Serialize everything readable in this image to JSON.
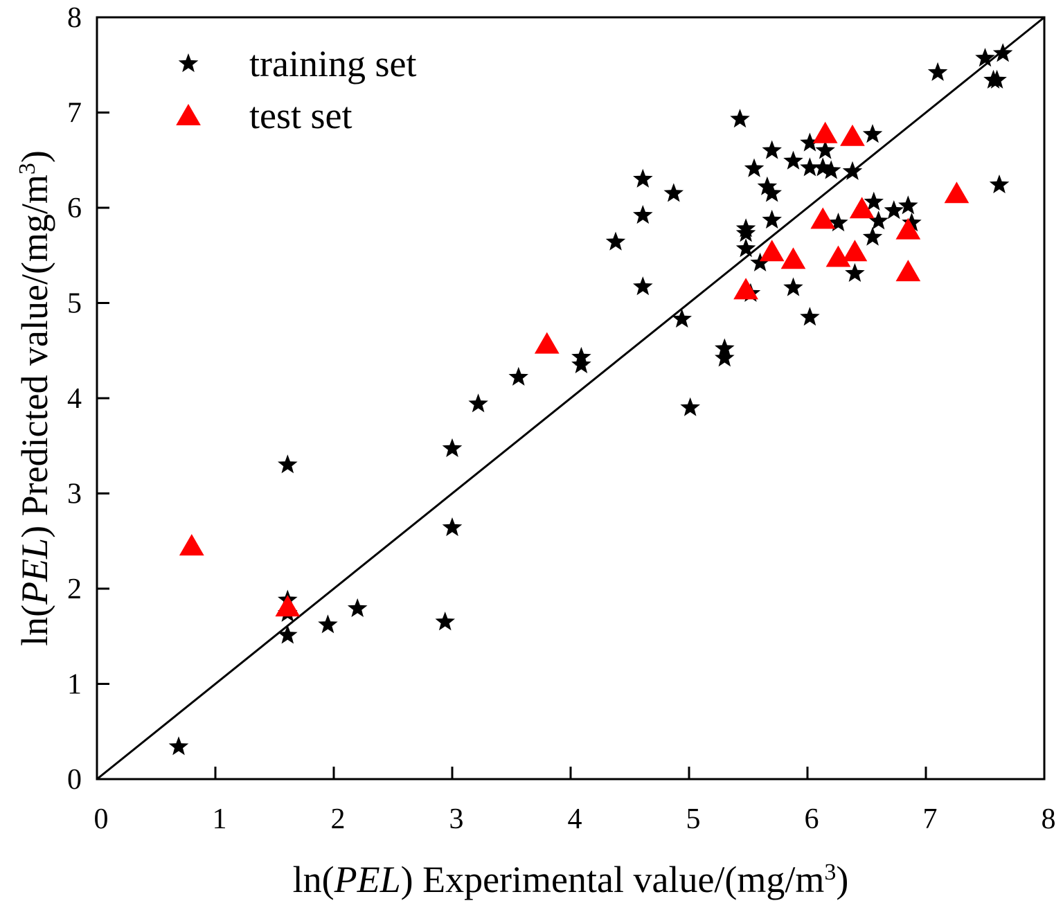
{
  "chart_data": {
    "type": "scatter",
    "title": "",
    "xlabel": {
      "prefix": "ln(",
      "italic": "PEL",
      "rest": ") Experimental value/(mg/m",
      "sup": "3",
      "suffix": ")"
    },
    "ylabel": {
      "prefix": "ln(",
      "italic": "PEL",
      "rest": ") Predicted value/(mg/m",
      "sup": "3",
      "suffix": ")"
    },
    "xlim": [
      0,
      8
    ],
    "ylim": [
      0,
      8
    ],
    "xticks": [
      0,
      1,
      2,
      3,
      4,
      5,
      6,
      7,
      8
    ],
    "yticks": [
      0,
      1,
      2,
      3,
      4,
      5,
      6,
      7,
      8
    ],
    "grid": false,
    "legend_position": "top-left",
    "reference_line": {
      "label": "y = x",
      "from": [
        0,
        0
      ],
      "to": [
        8,
        8
      ]
    },
    "series": [
      {
        "name": "training set",
        "marker": "star",
        "color": "#000000",
        "points": [
          [
            0.69,
            0.34
          ],
          [
            1.61,
            3.3
          ],
          [
            1.61,
            1.88
          ],
          [
            1.61,
            1.74
          ],
          [
            1.61,
            1.51
          ],
          [
            1.95,
            1.62
          ],
          [
            2.2,
            1.79
          ],
          [
            2.94,
            1.65
          ],
          [
            3.0,
            2.64
          ],
          [
            3.0,
            3.47
          ],
          [
            3.22,
            3.94
          ],
          [
            3.56,
            4.22
          ],
          [
            4.09,
            4.43
          ],
          [
            4.09,
            4.35
          ],
          [
            4.38,
            5.64
          ],
          [
            4.61,
            6.3
          ],
          [
            4.61,
            5.92
          ],
          [
            4.61,
            5.17
          ],
          [
            4.87,
            6.15
          ],
          [
            4.94,
            4.83
          ],
          [
            5.01,
            3.9
          ],
          [
            5.3,
            4.52
          ],
          [
            5.3,
            4.42
          ],
          [
            5.43,
            6.93
          ],
          [
            5.48,
            5.78
          ],
          [
            5.48,
            5.73
          ],
          [
            5.48,
            5.57
          ],
          [
            5.52,
            5.1
          ],
          [
            5.55,
            6.41
          ],
          [
            5.6,
            5.42
          ],
          [
            5.66,
            6.22
          ],
          [
            5.7,
            6.6
          ],
          [
            5.7,
            6.15
          ],
          [
            5.7,
            5.87
          ],
          [
            5.88,
            6.49
          ],
          [
            5.88,
            5.16
          ],
          [
            6.02,
            6.68
          ],
          [
            6.02,
            6.42
          ],
          [
            6.02,
            4.85
          ],
          [
            6.13,
            6.42
          ],
          [
            6.15,
            6.6
          ],
          [
            6.2,
            6.39
          ],
          [
            6.26,
            5.84
          ],
          [
            6.38,
            6.38
          ],
          [
            6.4,
            5.31
          ],
          [
            6.55,
            6.77
          ],
          [
            6.56,
            6.06
          ],
          [
            6.55,
            5.69
          ],
          [
            6.6,
            5.86
          ],
          [
            6.73,
            5.97
          ],
          [
            6.85,
            6.02
          ],
          [
            6.88,
            5.84
          ],
          [
            7.1,
            7.42
          ],
          [
            7.5,
            7.57
          ],
          [
            7.57,
            7.34
          ],
          [
            7.6,
            7.34
          ],
          [
            7.62,
            6.24
          ],
          [
            7.65,
            7.62
          ]
        ]
      },
      {
        "name": "test set",
        "marker": "triangle",
        "color": "#ff0000",
        "points": [
          [
            0.8,
            2.45
          ],
          [
            1.61,
            1.81
          ],
          [
            3.8,
            4.57
          ],
          [
            5.48,
            5.14
          ],
          [
            5.7,
            5.54
          ],
          [
            5.88,
            5.46
          ],
          [
            6.13,
            5.88
          ],
          [
            6.15,
            6.78
          ],
          [
            6.26,
            5.48
          ],
          [
            6.38,
            6.75
          ],
          [
            6.4,
            5.54
          ],
          [
            6.46,
            5.99
          ],
          [
            6.85,
            5.77
          ],
          [
            6.85,
            5.33
          ],
          [
            7.26,
            6.15
          ]
        ]
      }
    ]
  }
}
